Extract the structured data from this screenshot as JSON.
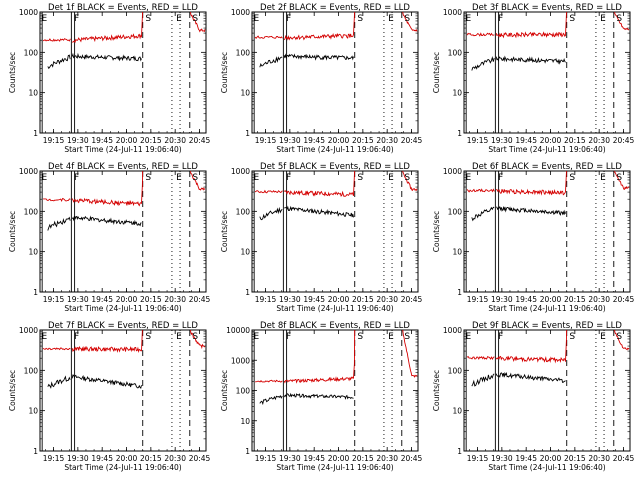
{
  "chart_data": [
    {
      "type": "line",
      "title": "Det 1f BLACK = Events, RED = LLD",
      "xlabel": "Start Time (24-Jul-11 19:06:40)",
      "ylabel": "Counts/sec",
      "yscale": "log",
      "ylim": [
        1,
        1000
      ],
      "ytick_labels": [
        "1",
        "10",
        "100",
        "1000"
      ],
      "xtick_labels": [
        "19:15",
        "19:30",
        "19:45",
        "20:00",
        "20:15",
        "20:30",
        "20:45"
      ],
      "xlim": [
        "19:06:40",
        "20:49"
      ],
      "series": [
        {
          "color": "#000000",
          "level": 80,
          "end_level": 70
        },
        {
          "color": "#d40000",
          "level": 200,
          "end_level": 260
        }
      ],
      "jump_level": 1000,
      "tail_level": 350,
      "dashed_lines": [
        "20:10",
        "20:39"
      ],
      "dotted_lines": [
        "20:28",
        "20:33"
      ],
      "solid_lines": [
        "19:08",
        "19:26",
        "19:28"
      ],
      "flags": [
        {
          "label": "E",
          "at": "19:07"
        },
        {
          "label": "F",
          "at": "19:27"
        },
        {
          "label": "S",
          "at": "20:11"
        },
        {
          "label": "E",
          "at": "20:30"
        },
        {
          "label": "S",
          "at": "20:40"
        }
      ]
    },
    {
      "type": "line",
      "title": "Det 2f BLACK = Events, RED = LLD",
      "xlabel": "Start Time (24-Jul-11 19:06:40)",
      "ylabel": "Counts/sec",
      "yscale": "log",
      "ylim": [
        1,
        1000
      ],
      "ytick_labels": [
        "1",
        "10",
        "100",
        "1000"
      ],
      "xtick_labels": [
        "19:15",
        "19:30",
        "19:45",
        "20:00",
        "20:15",
        "20:30",
        "20:45"
      ],
      "xlim": [
        "19:06:40",
        "20:49"
      ],
      "series": [
        {
          "color": "#000000",
          "level": 80,
          "end_level": 72
        },
        {
          "color": "#d40000",
          "level": 230,
          "end_level": 260
        }
      ],
      "jump_level": 1000,
      "tail_level": 350,
      "dashed_lines": [
        "20:10",
        "20:39"
      ],
      "dotted_lines": [
        "20:28",
        "20:33"
      ],
      "solid_lines": [
        "19:08",
        "19:26",
        "19:28"
      ],
      "flags": [
        {
          "label": "E",
          "at": "19:07"
        },
        {
          "label": "F",
          "at": "19:27"
        },
        {
          "label": "S",
          "at": "20:11"
        },
        {
          "label": "E",
          "at": "20:30"
        },
        {
          "label": "S",
          "at": "20:40"
        }
      ]
    },
    {
      "type": "line",
      "title": "Det 3f BLACK = Events, RED = LLD",
      "xlabel": "Start Time (24-Jul-11 19:06:40)",
      "ylabel": "Counts/sec",
      "yscale": "log",
      "ylim": [
        1,
        1000
      ],
      "ytick_labels": [
        "1",
        "10",
        "100",
        "1000"
      ],
      "xtick_labels": [
        "19:15",
        "19:30",
        "19:45",
        "20:00",
        "20:15",
        "20:30",
        "20:45"
      ],
      "xlim": [
        "19:06:40",
        "20:49"
      ],
      "series": [
        {
          "color": "#000000",
          "level": 70,
          "end_level": 60
        },
        {
          "color": "#d40000",
          "level": 270,
          "end_level": 280
        }
      ],
      "jump_level": 1000,
      "tail_level": 380,
      "dashed_lines": [
        "20:10",
        "20:39"
      ],
      "dotted_lines": [
        "20:28",
        "20:33"
      ],
      "solid_lines": [
        "19:08",
        "19:26",
        "19:28"
      ],
      "flags": [
        {
          "label": "E",
          "at": "19:07"
        },
        {
          "label": "F",
          "at": "19:27"
        },
        {
          "label": "S",
          "at": "20:11"
        },
        {
          "label": "E",
          "at": "20:30"
        },
        {
          "label": "S",
          "at": "20:40"
        }
      ]
    },
    {
      "type": "line",
      "title": "Det 4f BLACK = Events, RED = LLD",
      "xlabel": "Start Time (24-Jul-11 19:06:40)",
      "ylabel": "Counts/sec",
      "yscale": "log",
      "ylim": [
        1,
        1000
      ],
      "ytick_labels": [
        "1",
        "10",
        "100",
        "1000"
      ],
      "xtick_labels": [
        "19:15",
        "19:30",
        "19:45",
        "20:00",
        "20:15",
        "20:30",
        "20:45"
      ],
      "xlim": [
        "19:06:40",
        "20:49"
      ],
      "series": [
        {
          "color": "#000000",
          "level": 70,
          "end_level": 50
        },
        {
          "color": "#d40000",
          "level": 190,
          "end_level": 150
        }
      ],
      "jump_level": 1000,
      "tail_level": 350,
      "dashed_lines": [
        "20:10",
        "20:39"
      ],
      "dotted_lines": [
        "20:28",
        "20:33"
      ],
      "solid_lines": [
        "19:08",
        "19:26",
        "19:28"
      ],
      "flags": [
        {
          "label": "E",
          "at": "19:07"
        },
        {
          "label": "F",
          "at": "19:27"
        },
        {
          "label": "S",
          "at": "20:11"
        },
        {
          "label": "E",
          "at": "20:30"
        },
        {
          "label": "S",
          "at": "20:40"
        }
      ]
    },
    {
      "type": "line",
      "title": "Det 5f BLACK = Events, RED = LLD",
      "xlabel": "Start Time (24-Jul-11 19:06:40)",
      "ylabel": "Counts/sec",
      "yscale": "log",
      "ylim": [
        1,
        1000
      ],
      "ytick_labels": [
        "1",
        "10",
        "100",
        "1000"
      ],
      "xtick_labels": [
        "19:15",
        "19:30",
        "19:45",
        "20:00",
        "20:15",
        "20:30",
        "20:45"
      ],
      "xlim": [
        "19:06:40",
        "20:49"
      ],
      "series": [
        {
          "color": "#000000",
          "level": 120,
          "end_level": 80
        },
        {
          "color": "#d40000",
          "level": 300,
          "end_level": 260
        }
      ],
      "jump_level": 1000,
      "tail_level": 350,
      "dashed_lines": [
        "20:10",
        "20:39"
      ],
      "dotted_lines": [
        "20:28",
        "20:33"
      ],
      "solid_lines": [
        "19:08",
        "19:26",
        "19:28"
      ],
      "flags": [
        {
          "label": "E",
          "at": "19:07"
        },
        {
          "label": "F",
          "at": "19:27"
        },
        {
          "label": "S",
          "at": "20:11"
        },
        {
          "label": "E",
          "at": "20:30"
        },
        {
          "label": "S",
          "at": "20:40"
        }
      ]
    },
    {
      "type": "line",
      "title": "Det 6f BLACK = Events, RED = LLD",
      "xlabel": "Start Time (24-Jul-11 19:06:40)",
      "ylabel": "Counts/sec",
      "yscale": "log",
      "ylim": [
        1,
        1000
      ],
      "ytick_labels": [
        "1",
        "10",
        "100",
        "1000"
      ],
      "xtick_labels": [
        "19:15",
        "19:30",
        "19:45",
        "20:00",
        "20:15",
        "20:30",
        "20:45"
      ],
      "xlim": [
        "19:06:40",
        "20:49"
      ],
      "series": [
        {
          "color": "#000000",
          "level": 120,
          "end_level": 90
        },
        {
          "color": "#d40000",
          "level": 320,
          "end_level": 290
        }
      ],
      "jump_level": 1000,
      "tail_level": 380,
      "dashed_lines": [
        "20:10",
        "20:39"
      ],
      "dotted_lines": [
        "20:28",
        "20:33"
      ],
      "solid_lines": [
        "19:08",
        "19:26",
        "19:28"
      ],
      "flags": [
        {
          "label": "E",
          "at": "19:07"
        },
        {
          "label": "F",
          "at": "19:27"
        },
        {
          "label": "S",
          "at": "20:11"
        },
        {
          "label": "E",
          "at": "20:30"
        },
        {
          "label": "S",
          "at": "20:40"
        }
      ]
    },
    {
      "type": "line",
      "title": "Det 7f BLACK = Events, RED = LLD",
      "xlabel": "Start Time (24-Jul-11 19:06:40)",
      "ylabel": "Counts/sec",
      "yscale": "log",
      "ylim": [
        1,
        1000
      ],
      "ytick_labels": [
        "1",
        "10",
        "100",
        "1000"
      ],
      "xtick_labels": [
        "19:15",
        "19:30",
        "19:45",
        "20:00",
        "20:15",
        "20:30",
        "20:45"
      ],
      "xlim": [
        "19:06:40",
        "20:49"
      ],
      "series": [
        {
          "color": "#000000",
          "level": 70,
          "end_level": 40
        },
        {
          "color": "#d40000",
          "level": 340,
          "end_level": 330
        }
      ],
      "jump_level": 1000,
      "tail_level": 400,
      "dashed_lines": [
        "20:10",
        "20:39"
      ],
      "dotted_lines": [
        "20:28",
        "20:33"
      ],
      "solid_lines": [
        "19:08",
        "19:26",
        "19:28"
      ],
      "flags": [
        {
          "label": "E",
          "at": "19:07"
        },
        {
          "label": "F",
          "at": "19:27"
        },
        {
          "label": "S",
          "at": "20:11"
        },
        {
          "label": "E",
          "at": "20:30"
        },
        {
          "label": "S",
          "at": "20:40"
        }
      ]
    },
    {
      "type": "line",
      "title": "Det 8f BLACK = Events, RED = LLD",
      "xlabel": "Start Time (24-Jul-11 19:06:40)",
      "ylabel": "Counts/sec",
      "yscale": "log",
      "ylim": [
        1,
        10000
      ],
      "ytick_labels": [
        "1",
        "10",
        "100",
        "1000",
        "10000"
      ],
      "xtick_labels": [
        "19:15",
        "19:30",
        "19:45",
        "20:00",
        "20:15",
        "20:30",
        "20:45"
      ],
      "xlim": [
        "19:06:40",
        "20:49"
      ],
      "series": [
        {
          "color": "#000000",
          "level": 70,
          "end_level": 60
        },
        {
          "color": "#d40000",
          "level": 200,
          "end_level": 250
        }
      ],
      "jump_level": 10000,
      "tail_level": 300,
      "dashed_lines": [
        "20:10",
        "20:39"
      ],
      "dotted_lines": [
        "20:28",
        "20:33"
      ],
      "solid_lines": [
        "19:08",
        "19:26",
        "19:28"
      ],
      "flags": [
        {
          "label": "E",
          "at": "19:07"
        },
        {
          "label": "F",
          "at": "19:27"
        },
        {
          "label": "S",
          "at": "20:11"
        },
        {
          "label": "E",
          "at": "20:30"
        },
        {
          "label": "S",
          "at": "20:40"
        }
      ]
    },
    {
      "type": "line",
      "title": "Det 9f BLACK = Events, RED = LLD",
      "xlabel": "Start Time (24-Jul-11 19:06:40)",
      "ylabel": "Counts/sec",
      "yscale": "log",
      "ylim": [
        1,
        1000
      ],
      "ytick_labels": [
        "1",
        "10",
        "100",
        "1000"
      ],
      "xtick_labels": [
        "19:15",
        "19:30",
        "19:45",
        "20:00",
        "20:15",
        "20:30",
        "20:45"
      ],
      "xlim": [
        "19:06:40",
        "20:49"
      ],
      "series": [
        {
          "color": "#000000",
          "level": 80,
          "end_level": 55
        },
        {
          "color": "#d40000",
          "level": 200,
          "end_level": 180
        }
      ],
      "jump_level": 1000,
      "tail_level": 350,
      "dashed_lines": [
        "20:10",
        "20:39"
      ],
      "dotted_lines": [
        "20:28",
        "20:33"
      ],
      "solid_lines": [
        "19:08",
        "19:26",
        "19:28"
      ],
      "flags": [
        {
          "label": "E",
          "at": "19:07"
        },
        {
          "label": "F",
          "at": "19:27"
        },
        {
          "label": "S",
          "at": "20:11"
        },
        {
          "label": "E",
          "at": "20:30"
        },
        {
          "label": "S",
          "at": "20:40"
        }
      ]
    }
  ]
}
